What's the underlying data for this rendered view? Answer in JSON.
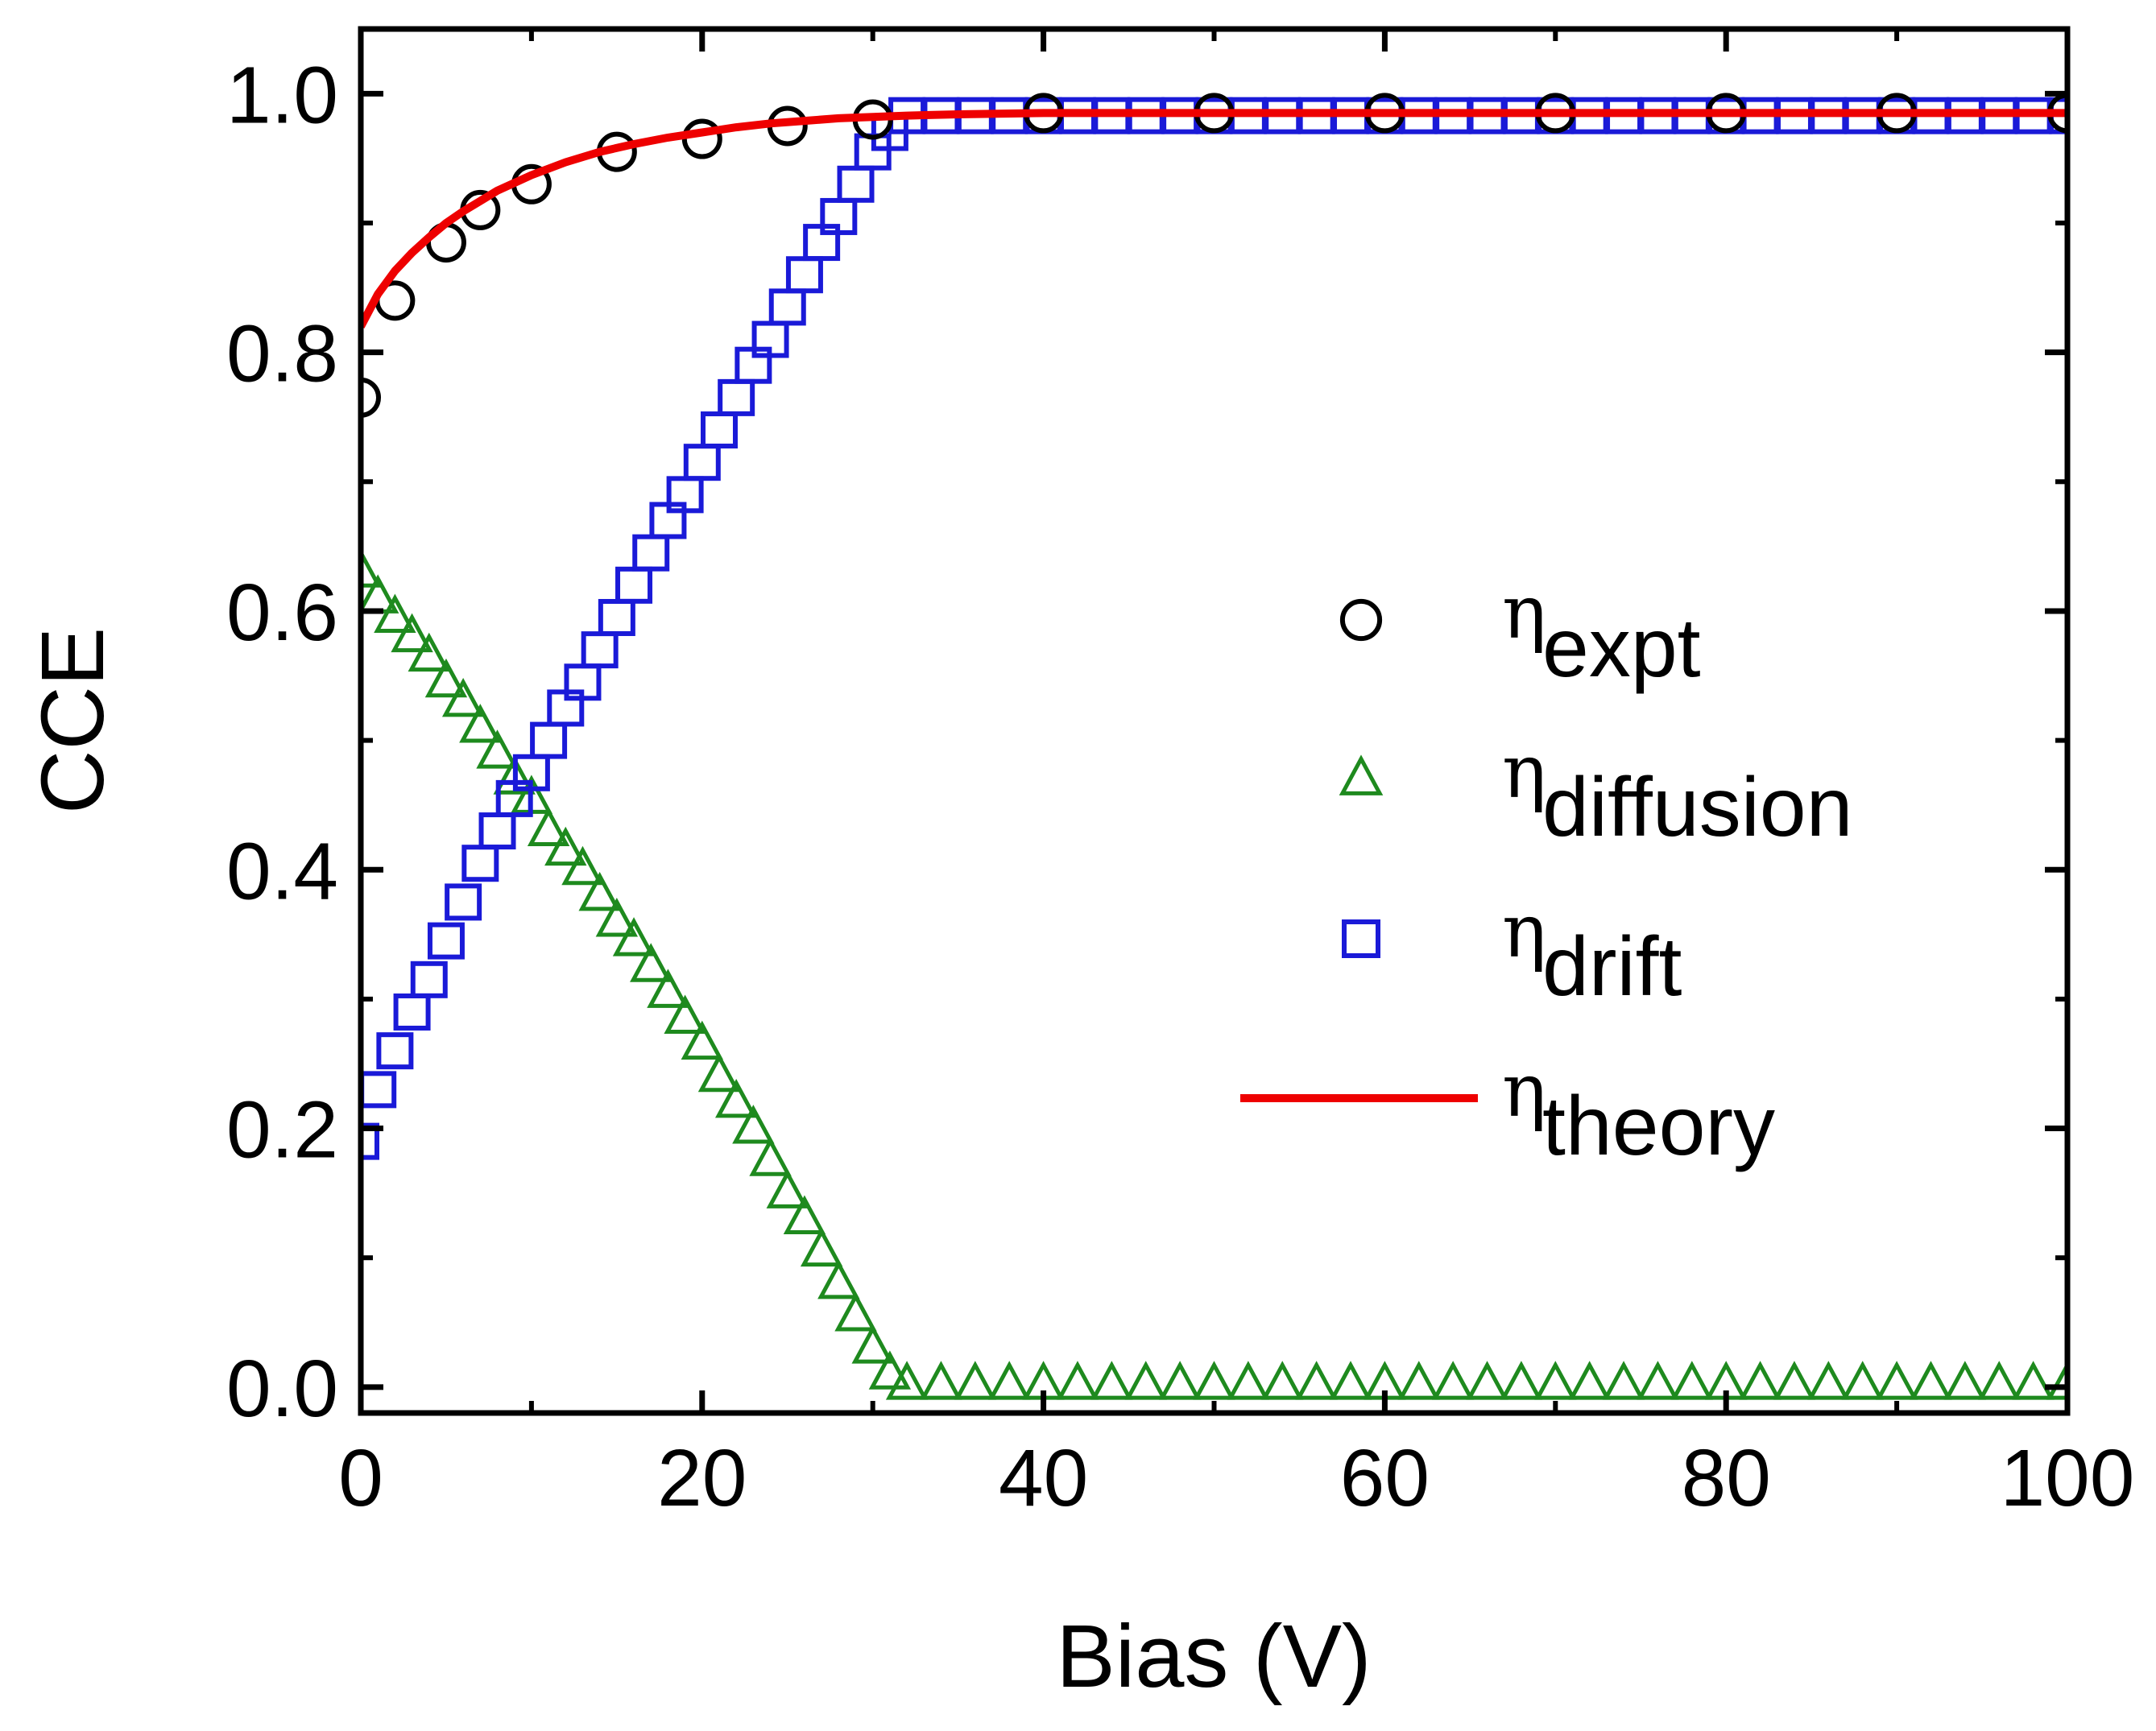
{
  "chart_data": {
    "type": "scatter",
    "title": "",
    "xlabel": "Bias (V)",
    "ylabel": "CCE",
    "xlim": [
      0,
      100
    ],
    "ylim": [
      -0.02,
      1.05
    ],
    "xticks": [
      0,
      20,
      40,
      60,
      80,
      100
    ],
    "xtick_labels": [
      "0",
      "20",
      "40",
      "60",
      "80",
      "100"
    ],
    "yticks": [
      0.0,
      0.2,
      0.4,
      0.6,
      0.8,
      1.0
    ],
    "ytick_labels": [
      "0.0",
      "0.2",
      "0.4",
      "0.6",
      "0.8",
      "1.0"
    ],
    "legend_position": "center-right",
    "series": [
      {
        "name": "expt",
        "legend_symbol": "η",
        "legend_subscript": "expt",
        "marker": "circle",
        "color": "#000000",
        "x": [
          0,
          2,
          5,
          7,
          10,
          15,
          20,
          25,
          30,
          40,
          50,
          60,
          70,
          80,
          90,
          100
        ],
        "y": [
          0.765,
          0.84,
          0.885,
          0.91,
          0.93,
          0.955,
          0.965,
          0.975,
          0.98,
          0.985,
          0.985,
          0.985,
          0.985,
          0.985,
          0.985,
          0.985
        ]
      },
      {
        "name": "diffusion",
        "legend_symbol": "η",
        "legend_subscript": "diffusion",
        "marker": "triangle",
        "color": "#1e8a1e",
        "x": [
          0,
          1,
          2,
          3,
          4,
          5,
          6,
          7,
          8,
          9,
          10,
          11,
          12,
          13,
          14,
          15,
          16,
          17,
          18,
          19,
          20,
          21,
          22,
          23,
          24,
          25,
          26,
          27,
          28,
          29,
          30,
          31,
          32,
          34,
          36,
          38,
          40,
          42,
          44,
          46,
          48,
          50,
          52,
          54,
          56,
          58,
          60,
          62,
          64,
          66,
          68,
          70,
          72,
          74,
          76,
          78,
          80,
          82,
          84,
          86,
          88,
          90,
          92,
          94,
          96,
          98,
          100
        ],
        "y": [
          0.63,
          0.61,
          0.595,
          0.58,
          0.565,
          0.545,
          0.53,
          0.51,
          0.49,
          0.47,
          0.455,
          0.43,
          0.415,
          0.4,
          0.38,
          0.36,
          0.345,
          0.325,
          0.305,
          0.285,
          0.265,
          0.24,
          0.22,
          0.2,
          0.175,
          0.15,
          0.13,
          0.105,
          0.08,
          0.055,
          0.03,
          0.01,
          0.002,
          0.002,
          0.002,
          0.002,
          0.002,
          0.002,
          0.002,
          0.002,
          0.002,
          0.002,
          0.002,
          0.002,
          0.002,
          0.002,
          0.002,
          0.002,
          0.002,
          0.002,
          0.002,
          0.002,
          0.002,
          0.002,
          0.002,
          0.002,
          0.002,
          0.002,
          0.002,
          0.002,
          0.002,
          0.002,
          0.002,
          0.002,
          0.002,
          0.002,
          0.002
        ]
      },
      {
        "name": "drift",
        "legend_symbol": "η",
        "legend_subscript": "drift",
        "marker": "square",
        "color": "#1a1ad8",
        "x": [
          0,
          1,
          2,
          3,
          4,
          5,
          6,
          7,
          8,
          9,
          10,
          11,
          12,
          13,
          14,
          15,
          16,
          17,
          18,
          19,
          20,
          21,
          22,
          23,
          24,
          25,
          26,
          27,
          28,
          29,
          30,
          31,
          32,
          34,
          36,
          38,
          40,
          42,
          44,
          46,
          48,
          50,
          52,
          54,
          56,
          58,
          60,
          62,
          64,
          66,
          68,
          70,
          72,
          74,
          76,
          78,
          80,
          82,
          84,
          86,
          88,
          90,
          92,
          94,
          96,
          98,
          100
        ],
        "y": [
          0.19,
          0.23,
          0.26,
          0.29,
          0.315,
          0.345,
          0.375,
          0.405,
          0.43,
          0.455,
          0.475,
          0.5,
          0.525,
          0.545,
          0.57,
          0.595,
          0.62,
          0.645,
          0.67,
          0.69,
          0.715,
          0.74,
          0.765,
          0.79,
          0.81,
          0.835,
          0.86,
          0.885,
          0.905,
          0.93,
          0.955,
          0.97,
          0.983,
          0.983,
          0.983,
          0.983,
          0.983,
          0.983,
          0.983,
          0.983,
          0.983,
          0.983,
          0.983,
          0.983,
          0.983,
          0.983,
          0.983,
          0.983,
          0.983,
          0.983,
          0.983,
          0.983,
          0.983,
          0.983,
          0.983,
          0.983,
          0.983,
          0.983,
          0.983,
          0.983,
          0.983,
          0.983,
          0.983,
          0.983,
          0.983,
          0.983,
          0.983
        ]
      },
      {
        "name": "theory",
        "legend_symbol": "η",
        "legend_subscript": "theory",
        "marker": "line",
        "color": "#ee0000",
        "x": [
          0,
          1,
          2,
          3,
          4,
          5,
          6,
          7,
          8,
          9,
          10,
          12,
          14,
          16,
          18,
          20,
          22,
          24,
          26,
          28,
          30,
          32,
          35,
          40,
          50,
          60,
          70,
          80,
          90,
          100
        ],
        "y": [
          0.82,
          0.845,
          0.863,
          0.877,
          0.889,
          0.9,
          0.909,
          0.917,
          0.925,
          0.931,
          0.937,
          0.947,
          0.955,
          0.961,
          0.966,
          0.97,
          0.974,
          0.977,
          0.979,
          0.981,
          0.982,
          0.983,
          0.984,
          0.985,
          0.985,
          0.985,
          0.985,
          0.985,
          0.985,
          0.985
        ]
      }
    ]
  }
}
